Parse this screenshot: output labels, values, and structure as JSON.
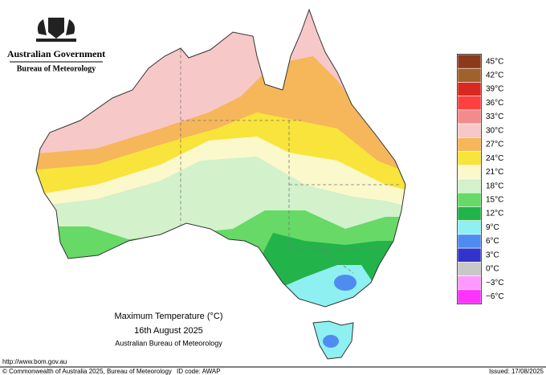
{
  "header": {
    "government": "Australian Government",
    "bureau": "Bureau of Meteorology"
  },
  "legend": {
    "items": [
      {
        "label": "45°C",
        "color": "#8b3a1a"
      },
      {
        "label": "42°C",
        "color": "#a0622d"
      },
      {
        "label": "39°C",
        "color": "#d9281f"
      },
      {
        "label": "36°C",
        "color": "#ff4040"
      },
      {
        "label": "33°C",
        "color": "#f28c8c"
      },
      {
        "label": "30°C",
        "color": "#f7c8c8"
      },
      {
        "label": "27°C",
        "color": "#f6b65a"
      },
      {
        "label": "24°C",
        "color": "#f8e43a"
      },
      {
        "label": "21°C",
        "color": "#fbf8cc"
      },
      {
        "label": "18°C",
        "color": "#d3f1cb"
      },
      {
        "label": "15°C",
        "color": "#66d966"
      },
      {
        "label": "12°C",
        "color": "#22b44a"
      },
      {
        "label": "9°C",
        "color": "#8ef0f0"
      },
      {
        "label": "6°C",
        "color": "#4f8cf0"
      },
      {
        "label": "3°C",
        "color": "#3333cc"
      },
      {
        "label": "0°C",
        "color": "#c8c8c8"
      },
      {
        "label": "−3°C",
        "color": "#ff99ff"
      },
      {
        "label": "−6°C",
        "color": "#ff33ff"
      }
    ]
  },
  "caption": {
    "title": "Maximum Temperature (°C)",
    "date": "16th August 2025",
    "source": "Australian Bureau of Meteorology"
  },
  "footer": {
    "url": "http://www.bom.gov.au",
    "copyright": "© Commonwealth of Australia 2025, Bureau of Meteorology",
    "id_code": "ID code: AWAP",
    "issued": "Issued: 17/08/2025"
  }
}
